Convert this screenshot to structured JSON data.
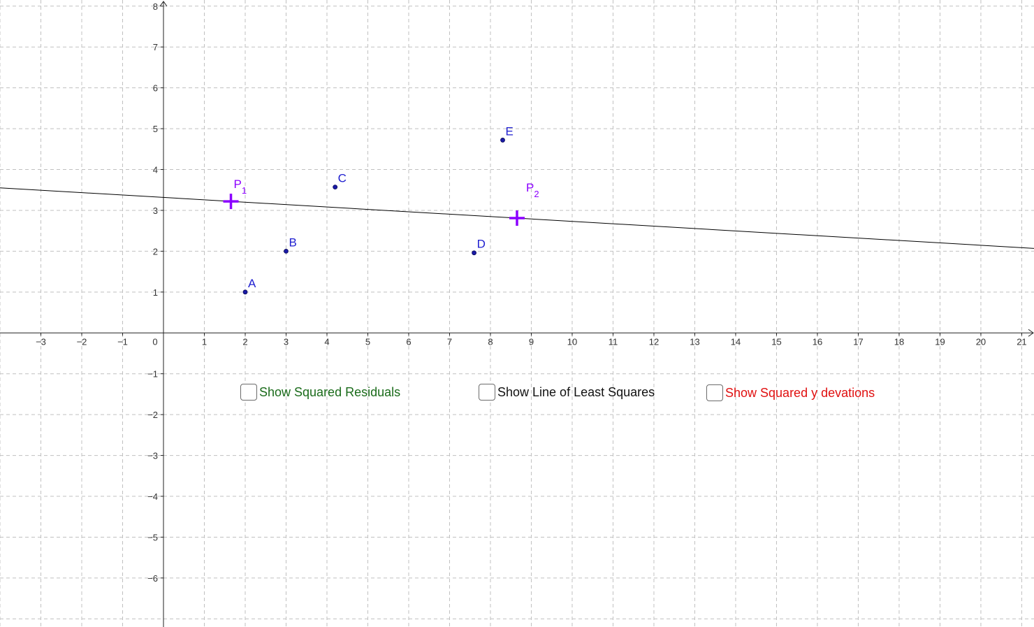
{
  "graph": {
    "x_range": [
      -4,
      21.3
    ],
    "y_range": [
      -7.2,
      8.15
    ],
    "x_ticks": [
      "-3",
      "-2",
      "-1",
      "0",
      "1",
      "2",
      "3",
      "4",
      "5",
      "6",
      "7",
      "8",
      "9",
      "10",
      "11",
      "12",
      "13",
      "14",
      "15",
      "16",
      "17",
      "18",
      "19",
      "20",
      "21"
    ],
    "y_ticks": [
      "-6",
      "-5",
      "-4",
      "-3",
      "-2",
      "-1",
      "1",
      "2",
      "3",
      "4",
      "5",
      "6",
      "7",
      "8"
    ],
    "grid": true,
    "grid_color": "#c0c0c0",
    "point_color": "#1a1aa6",
    "label_color": "#2020d0",
    "control_point_color": "#8b00ff",
    "line_color": "#000000"
  },
  "points": [
    {
      "label": "A",
      "x": 2.0,
      "y": 1.0
    },
    {
      "label": "B",
      "x": 3.0,
      "y": 2.0
    },
    {
      "label": "C",
      "x": 4.2,
      "y": 3.57
    },
    {
      "label": "D",
      "x": 7.6,
      "y": 1.96
    },
    {
      "label": "E",
      "x": 8.3,
      "y": 4.72
    }
  ],
  "control_points": [
    {
      "label": "P",
      "sub": "1",
      "x": 1.65,
      "y": 3.22
    },
    {
      "label": "P",
      "sub": "2",
      "x": 8.65,
      "y": 2.81
    }
  ],
  "checkboxes": [
    {
      "label": "Show Squared Residuals",
      "checked": false,
      "color": "#1a6b1a"
    },
    {
      "label": "Show Line of Least Squares",
      "checked": false,
      "color": "#111111"
    },
    {
      "label": "Show Squared y devations",
      "checked": false,
      "color": "#e01010"
    }
  ]
}
